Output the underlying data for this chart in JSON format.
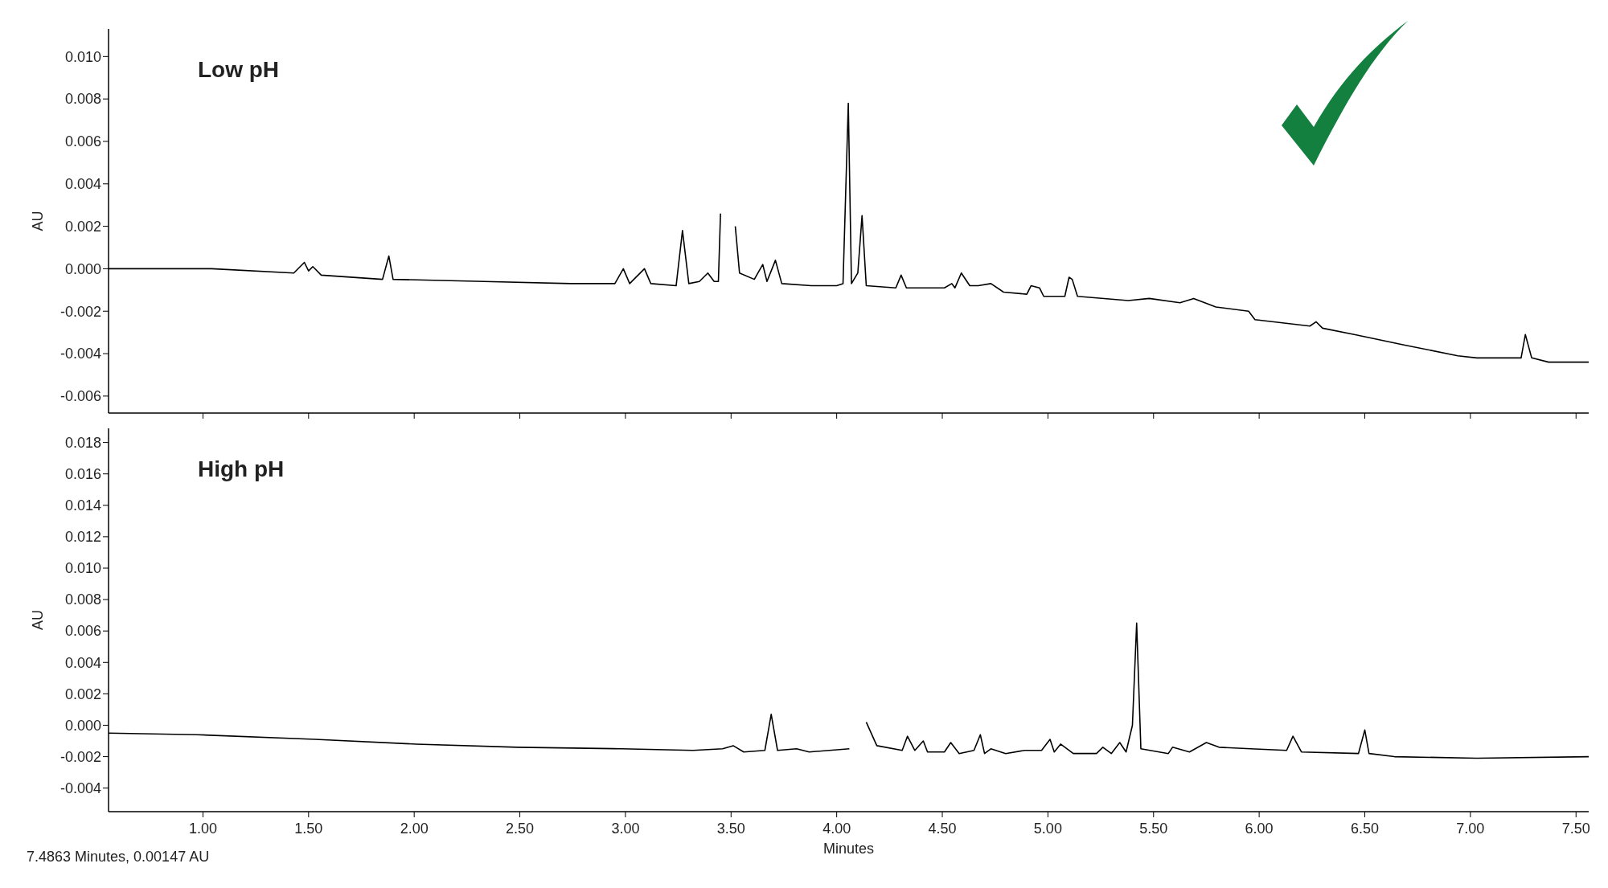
{
  "chart_data": [
    {
      "type": "line",
      "title": "Low pH",
      "ylabel": "AU",
      "tick_labels": "y",
      "xlim": [
        0.553,
        7.56
      ],
      "ylim": [
        -0.0068,
        0.0113
      ],
      "xticks": [
        {
          "value": 1,
          "label": null
        },
        {
          "value": 1.5,
          "label": null
        },
        {
          "value": 2,
          "label": null
        },
        {
          "value": 2.5,
          "label": null
        },
        {
          "value": 3,
          "label": null
        },
        {
          "value": 3.5,
          "label": null
        },
        {
          "value": 4,
          "label": null
        },
        {
          "value": 4.5,
          "label": null
        },
        {
          "value": 5,
          "label": null
        },
        {
          "value": 5.5,
          "label": null
        },
        {
          "value": 6,
          "label": null
        },
        {
          "value": 6.5,
          "label": null
        },
        {
          "value": 7,
          "label": null
        },
        {
          "value": 7.5,
          "label": null
        }
      ],
      "yticks": [
        {
          "value": -0.006,
          "label": "-0.006"
        },
        {
          "value": -0.004,
          "label": "-0.004"
        },
        {
          "value": -0.002,
          "label": "-0.002"
        },
        {
          "value": 0,
          "label": "0.000"
        },
        {
          "value": 0.002,
          "label": "0.002"
        },
        {
          "value": 0.004,
          "label": "0.004"
        },
        {
          "value": 0.006,
          "label": "0.006"
        },
        {
          "value": 0.008,
          "label": "0.008"
        },
        {
          "value": 0.01,
          "label": "0.010"
        }
      ],
      "x": [
        0.553,
        1.04,
        1.43,
        1.48,
        1.5,
        1.52,
        1.56,
        1.85,
        1.88,
        1.9,
        2.33,
        2.74,
        2.95,
        2.99,
        3.02,
        3.09,
        3.12,
        3.24,
        3.27,
        3.3,
        3.35,
        3.37,
        3.39,
        3.42,
        3.44,
        3.45,
        3.46,
        3.5,
        3.52,
        3.54,
        3.61,
        3.65,
        3.67,
        3.71,
        3.74,
        3.88,
        4.0,
        4.03,
        4.055,
        4.07,
        4.1,
        4.12,
        4.14,
        4.28,
        4.305,
        4.33,
        4.51,
        4.545,
        4.56,
        4.59,
        4.63,
        4.67,
        4.73,
        4.79,
        4.9,
        4.92,
        4.96,
        4.98,
        5.08,
        5.1,
        5.115,
        5.14,
        5.38,
        5.48,
        5.625,
        5.69,
        5.795,
        5.95,
        5.98,
        6.24,
        6.27,
        6.3,
        6.45,
        6.69,
        6.94,
        7.03,
        7.24,
        7.26,
        7.29,
        7.37,
        7.56
      ],
      "series": [
        {
          "color": "#000000",
          "values": [
            0,
            0,
            -0.0002,
            0.0003,
            -0.0001,
            0.0001,
            -0.0003,
            -0.0005,
            0.0006,
            -0.0005,
            -0.0006,
            -0.0007,
            -0.0007,
            0,
            -0.0007,
            0,
            -0.0007,
            -0.0008,
            0.0018,
            -0.0007,
            -0.0006,
            -0.0004,
            -0.0002,
            -0.0006,
            -0.0006,
            0.0026,
            null,
            null,
            0.002,
            -0.0002,
            -0.0005,
            0.0002,
            -0.0006,
            0.0004,
            -0.0007,
            -0.0008,
            -0.0008,
            -0.0007,
            0.0078,
            -0.0007,
            -0.0002,
            0.0025,
            -0.0008,
            -0.0009,
            -0.0003,
            -0.0009,
            -0.0009,
            -0.0007,
            -0.0009,
            -0.0002,
            -0.0008,
            -0.0008,
            -0.0007,
            -0.0011,
            -0.0012,
            -0.0008,
            -0.0009,
            -0.0013,
            -0.0013,
            -0.0004,
            -0.0005,
            -0.0013,
            -0.0015,
            -0.0014,
            -0.0016,
            -0.0014,
            -0.0018,
            -0.002,
            -0.0024,
            -0.0027,
            -0.0025,
            -0.0028,
            -0.0031,
            -0.0036,
            -0.0041,
            -0.0042,
            -0.0042,
            -0.0031,
            -0.0042,
            -0.0044,
            -0.0044
          ]
        }
      ]
    },
    {
      "type": "line",
      "title": "High pH",
      "ylabel": "AU",
      "xlabel": "Minutes",
      "annotations": [
        "7.4863 Minutes, 0.00147 AU"
      ],
      "xlim": [
        0.553,
        7.56
      ],
      "ylim": [
        -0.0055,
        0.0189
      ],
      "xticks": [
        {
          "value": 1,
          "label": "1.00"
        },
        {
          "value": 1.5,
          "label": "1.50"
        },
        {
          "value": 2,
          "label": "2.00"
        },
        {
          "value": 2.5,
          "label": "2.50"
        },
        {
          "value": 3,
          "label": "3.00"
        },
        {
          "value": 3.5,
          "label": "3.50"
        },
        {
          "value": 4,
          "label": "4.00"
        },
        {
          "value": 4.5,
          "label": "4.50"
        },
        {
          "value": 5,
          "label": "5.00"
        },
        {
          "value": 5.5,
          "label": "5.50"
        },
        {
          "value": 6,
          "label": "6.00"
        },
        {
          "value": 6.5,
          "label": "6.50"
        },
        {
          "value": 7,
          "label": "7.00"
        },
        {
          "value": 7.5,
          "label": "7.50"
        }
      ],
      "yticks": [
        {
          "value": -0.004,
          "label": "-0.004"
        },
        {
          "value": -0.002,
          "label": "-0.002"
        },
        {
          "value": 0,
          "label": "0.000"
        },
        {
          "value": 0.002,
          "label": "0.002"
        },
        {
          "value": 0.004,
          "label": "0.004"
        },
        {
          "value": 0.006,
          "label": "0.006"
        },
        {
          "value": 0.008,
          "label": "0.008"
        },
        {
          "value": 0.01,
          "label": "0.010"
        },
        {
          "value": 0.012,
          "label": "0.012"
        },
        {
          "value": 0.014,
          "label": "0.014"
        },
        {
          "value": 0.016,
          "label": "0.016"
        },
        {
          "value": 0.018,
          "label": "0.018"
        }
      ],
      "x": [
        0.553,
        0.97,
        1.53,
        2.01,
        2.49,
        2.98,
        3.32,
        3.46,
        3.51,
        3.56,
        3.66,
        3.69,
        3.72,
        3.81,
        3.87,
        4.06,
        4.08,
        4.12,
        4.14,
        4.19,
        4.31,
        4.335,
        4.37,
        4.41,
        4.43,
        4.51,
        4.54,
        4.58,
        4.65,
        4.68,
        4.7,
        4.73,
        4.8,
        4.89,
        4.97,
        5.01,
        5.03,
        5.06,
        5.12,
        5.23,
        5.26,
        5.3,
        5.34,
        5.37,
        5.4,
        5.42,
        5.44,
        5.57,
        5.59,
        5.67,
        5.75,
        5.81,
        5.96,
        6.13,
        6.16,
        6.2,
        6.47,
        6.5,
        6.52,
        6.64,
        7.03,
        7.56
      ],
      "series": [
        {
          "color": "#000000",
          "values": [
            -0.0005,
            -0.0006,
            -0.0009,
            -0.0012,
            -0.0014,
            -0.0015,
            -0.0016,
            -0.0015,
            -0.0013,
            -0.0017,
            -0.0016,
            0.0007,
            -0.0016,
            -0.0015,
            -0.0017,
            -0.0015,
            null,
            null,
            0.0002,
            -0.0013,
            -0.0016,
            -0.0007,
            -0.0016,
            -0.001,
            -0.0017,
            -0.0017,
            -0.0011,
            -0.0018,
            -0.0016,
            -0.0006,
            -0.0018,
            -0.0015,
            -0.0018,
            -0.0016,
            -0.0016,
            -0.0009,
            -0.0017,
            -0.0012,
            -0.0018,
            -0.0018,
            -0.0014,
            -0.0018,
            -0.0011,
            -0.0017,
            0,
            0.0065,
            -0.0015,
            -0.0018,
            -0.0014,
            -0.0017,
            -0.0011,
            -0.0014,
            -0.0015,
            -0.0016,
            -0.0007,
            -0.0017,
            -0.0018,
            -0.0003,
            -0.0018,
            -0.002,
            -0.0021,
            -0.002
          ]
        }
      ]
    }
  ]
}
